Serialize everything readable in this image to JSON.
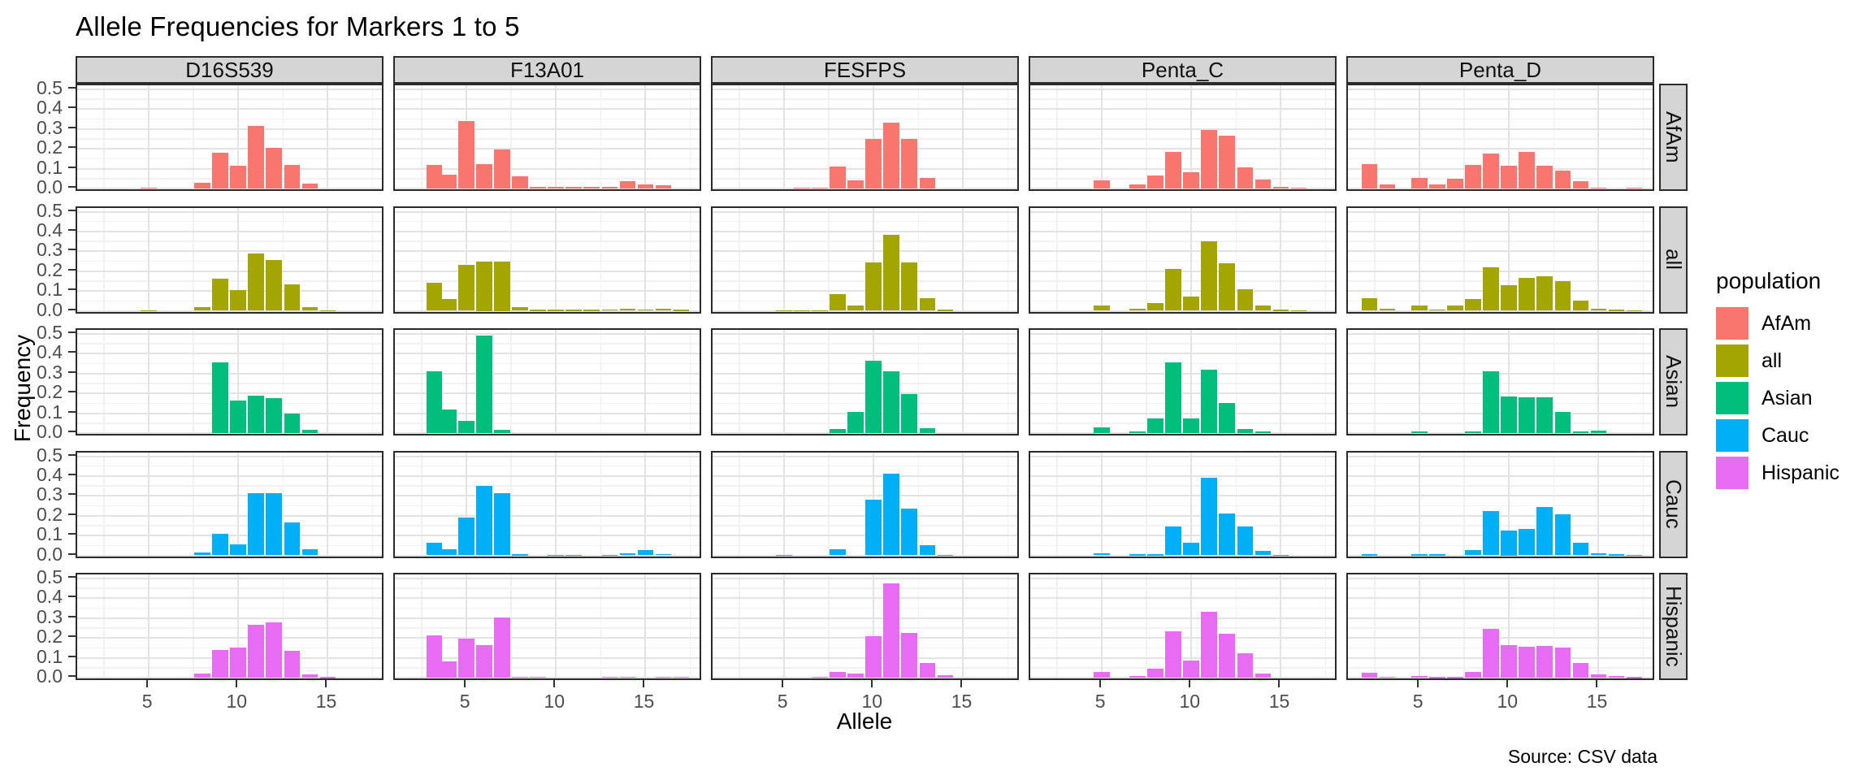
{
  "title": "Allele Frequencies for Markers 1 to 5",
  "caption": "Source: CSV data",
  "axes": {
    "x_label": "Allele",
    "y_label": "Frequency",
    "x_tick_labels": [
      "5",
      "10",
      "15"
    ],
    "y_tick_labels": [
      "0.0",
      "0.1",
      "0.2",
      "0.3",
      "0.4",
      "0.5"
    ]
  },
  "legend": {
    "title": "population",
    "entries": [
      {
        "label": "AfAm",
        "color": "#F8766D"
      },
      {
        "label": "all",
        "color": "#A3A500"
      },
      {
        "label": "Asian",
        "color": "#00BF7D"
      },
      {
        "label": "Cauc",
        "color": "#00B0F6"
      },
      {
        "label": "Hispanic",
        "color": "#E76BF3"
      }
    ]
  },
  "colors": {
    "strip_bg": "#D5D5D5",
    "panel_border": "#2B2B2B",
    "grid_major": "#E3E3E3",
    "grid_minor": "#F1F1F1"
  },
  "chart_data": {
    "type": "bar",
    "title": "Allele Frequencies for Markers 1 to 5",
    "xlabel": "Allele",
    "ylabel": "Frequency",
    "faceting": {
      "columns_variable": "marker",
      "rows_variable": "population",
      "columns": [
        "D16S539",
        "F13A01",
        "FESFPS",
        "Penta_C",
        "Penta_D"
      ],
      "rows": [
        "AfAm",
        "all",
        "Asian",
        "Cauc",
        "Hispanic"
      ]
    },
    "xlim": [
      1.0,
      18.2
    ],
    "ylim": [
      0,
      0.5
    ],
    "x_ticks": [
      5,
      10,
      15
    ],
    "y_ticks": [
      0,
      0.1,
      0.2,
      0.3,
      0.4,
      0.5
    ],
    "x_minor_ticks": [
      2.5,
      7.5,
      12.5,
      17.5
    ],
    "y_minor_ticks": [
      0.05,
      0.15,
      0.25,
      0.35,
      0.45
    ],
    "grid": "major+minor",
    "legend_position": "right",
    "bar_width": 0.9,
    "series_colors": {
      "AfAm": "#F8766D",
      "all": "#A3A500",
      "Asian": "#00BF7D",
      "Cauc": "#00B0F6",
      "Hispanic": "#E76BF3"
    },
    "panels": [
      {
        "marker": "D16S539",
        "population": "AfAm",
        "bars": [
          [
            5,
            0.005
          ],
          [
            8,
            0.03
          ],
          [
            9,
            0.18
          ],
          [
            10,
            0.115
          ],
          [
            11,
            0.315
          ],
          [
            12,
            0.205
          ],
          [
            13,
            0.12
          ],
          [
            14,
            0.025
          ]
        ]
      },
      {
        "marker": "F13A01",
        "population": "AfAm",
        "bars": [
          [
            3.2,
            0.12
          ],
          [
            4,
            0.07
          ],
          [
            5,
            0.34
          ],
          [
            6,
            0.125
          ],
          [
            7,
            0.195
          ],
          [
            8,
            0.06
          ],
          [
            9,
            0.01
          ],
          [
            10,
            0.008
          ],
          [
            11,
            0.008
          ],
          [
            12,
            0.008
          ],
          [
            13,
            0.008
          ],
          [
            14,
            0.035
          ],
          [
            15,
            0.02
          ],
          [
            16,
            0.015
          ]
        ]
      },
      {
        "marker": "FESFPS",
        "population": "AfAm",
        "bars": [
          [
            6,
            0.005
          ],
          [
            7,
            0.005
          ],
          [
            8,
            0.11
          ],
          [
            9,
            0.04
          ],
          [
            10,
            0.25
          ],
          [
            11,
            0.33
          ],
          [
            12,
            0.25
          ],
          [
            13,
            0.055
          ]
        ]
      },
      {
        "marker": "Penta_C",
        "population": "AfAm",
        "bars": [
          [
            5,
            0.04
          ],
          [
            7,
            0.02
          ],
          [
            8,
            0.065
          ],
          [
            9,
            0.185
          ],
          [
            10,
            0.08
          ],
          [
            11,
            0.295
          ],
          [
            12,
            0.265
          ],
          [
            13,
            0.105
          ],
          [
            14,
            0.045
          ],
          [
            15,
            0.01
          ],
          [
            16,
            0.005
          ]
        ]
      },
      {
        "marker": "Penta_D",
        "population": "AfAm",
        "bars": [
          [
            2.2,
            0.125
          ],
          [
            3.2,
            0.02
          ],
          [
            5,
            0.055
          ],
          [
            6,
            0.02
          ],
          [
            7,
            0.05
          ],
          [
            8,
            0.12
          ],
          [
            9,
            0.175
          ],
          [
            10,
            0.115
          ],
          [
            11,
            0.185
          ],
          [
            12,
            0.115
          ],
          [
            13,
            0.09
          ],
          [
            14,
            0.035
          ],
          [
            15,
            0.006
          ],
          [
            17,
            0.005
          ]
        ]
      },
      {
        "marker": "D16S539",
        "population": "all",
        "bars": [
          [
            5,
            0.004
          ],
          [
            8,
            0.02
          ],
          [
            9,
            0.16
          ],
          [
            10,
            0.105
          ],
          [
            11,
            0.29
          ],
          [
            12,
            0.255
          ],
          [
            13,
            0.135
          ],
          [
            14,
            0.02
          ],
          [
            15,
            0.004
          ]
        ]
      },
      {
        "marker": "F13A01",
        "population": "all",
        "bars": [
          [
            3.2,
            0.14
          ],
          [
            4,
            0.06
          ],
          [
            5,
            0.23
          ],
          [
            6,
            0.25
          ],
          [
            7,
            0.25
          ],
          [
            8,
            0.02
          ],
          [
            9,
            0.005
          ],
          [
            10,
            0.005
          ],
          [
            11,
            0.005
          ],
          [
            12,
            0.005
          ],
          [
            13,
            0.007
          ],
          [
            14,
            0.01
          ],
          [
            15,
            0.008
          ],
          [
            16,
            0.012
          ],
          [
            17,
            0.005
          ]
        ]
      },
      {
        "marker": "FESFPS",
        "population": "all",
        "bars": [
          [
            5,
            0.003
          ],
          [
            6,
            0.003
          ],
          [
            7,
            0.004
          ],
          [
            8,
            0.085
          ],
          [
            9,
            0.025
          ],
          [
            10,
            0.245
          ],
          [
            11,
            0.385
          ],
          [
            12,
            0.245
          ],
          [
            13,
            0.065
          ],
          [
            14,
            0.005
          ]
        ]
      },
      {
        "marker": "Penta_C",
        "population": "all",
        "bars": [
          [
            5,
            0.025
          ],
          [
            7,
            0.01
          ],
          [
            8,
            0.04
          ],
          [
            9,
            0.21
          ],
          [
            10,
            0.07
          ],
          [
            11,
            0.35
          ],
          [
            12,
            0.24
          ],
          [
            13,
            0.11
          ],
          [
            14,
            0.025
          ],
          [
            15,
            0.005
          ],
          [
            16,
            0.004
          ]
        ]
      },
      {
        "marker": "Penta_D",
        "population": "all",
        "bars": [
          [
            2.2,
            0.065
          ],
          [
            3.2,
            0.01
          ],
          [
            5,
            0.025
          ],
          [
            6,
            0.008
          ],
          [
            7,
            0.025
          ],
          [
            8,
            0.06
          ],
          [
            9,
            0.22
          ],
          [
            10,
            0.13
          ],
          [
            11,
            0.165
          ],
          [
            12,
            0.175
          ],
          [
            13,
            0.15
          ],
          [
            14,
            0.05
          ],
          [
            15,
            0.012
          ],
          [
            16,
            0.005
          ],
          [
            17,
            0.004
          ]
        ]
      },
      {
        "marker": "D16S539",
        "population": "Asian",
        "bars": [
          [
            9,
            0.355
          ],
          [
            10,
            0.165
          ],
          [
            11,
            0.19
          ],
          [
            12,
            0.175
          ],
          [
            13,
            0.1
          ],
          [
            14,
            0.015
          ]
        ]
      },
      {
        "marker": "F13A01",
        "population": "Asian",
        "bars": [
          [
            3.2,
            0.31
          ],
          [
            4,
            0.12
          ],
          [
            5,
            0.06
          ],
          [
            6,
            0.49
          ],
          [
            7,
            0.015
          ]
        ]
      },
      {
        "marker": "FESFPS",
        "population": "Asian",
        "bars": [
          [
            8,
            0.02
          ],
          [
            9,
            0.105
          ],
          [
            10,
            0.365
          ],
          [
            11,
            0.31
          ],
          [
            12,
            0.195
          ],
          [
            13,
            0.025
          ]
        ]
      },
      {
        "marker": "Penta_C",
        "population": "Asian",
        "bars": [
          [
            5,
            0.03
          ],
          [
            7,
            0.01
          ],
          [
            8,
            0.075
          ],
          [
            9,
            0.355
          ],
          [
            10,
            0.075
          ],
          [
            11,
            0.32
          ],
          [
            12,
            0.15
          ],
          [
            13,
            0.02
          ],
          [
            14,
            0.01
          ]
        ]
      },
      {
        "marker": "Penta_D",
        "population": "Asian",
        "bars": [
          [
            5,
            0.01
          ],
          [
            8,
            0.008
          ],
          [
            9,
            0.31
          ],
          [
            10,
            0.185
          ],
          [
            11,
            0.18
          ],
          [
            12,
            0.18
          ],
          [
            13,
            0.105
          ],
          [
            14,
            0.01
          ],
          [
            15,
            0.012
          ]
        ]
      },
      {
        "marker": "D16S539",
        "population": "Cauc",
        "bars": [
          [
            8,
            0.015
          ],
          [
            9,
            0.11
          ],
          [
            10,
            0.055
          ],
          [
            11,
            0.315
          ],
          [
            12,
            0.315
          ],
          [
            13,
            0.165
          ],
          [
            14,
            0.03
          ]
        ]
      },
      {
        "marker": "F13A01",
        "population": "Cauc",
        "bars": [
          [
            3.2,
            0.065
          ],
          [
            4,
            0.03
          ],
          [
            5,
            0.19
          ],
          [
            6,
            0.35
          ],
          [
            7,
            0.315
          ],
          [
            8,
            0.005
          ],
          [
            10,
            0.004
          ],
          [
            11,
            0.004
          ],
          [
            13,
            0.004
          ],
          [
            14,
            0.012
          ],
          [
            15,
            0.025
          ],
          [
            16,
            0.008
          ]
        ]
      },
      {
        "marker": "FESFPS",
        "population": "Cauc",
        "bars": [
          [
            5,
            0.003
          ],
          [
            8,
            0.03
          ],
          [
            10,
            0.28
          ],
          [
            11,
            0.41
          ],
          [
            12,
            0.235
          ],
          [
            13,
            0.05
          ],
          [
            14,
            0.004
          ]
        ]
      },
      {
        "marker": "Penta_C",
        "population": "Cauc",
        "bars": [
          [
            5,
            0.01
          ],
          [
            7,
            0.005
          ],
          [
            8,
            0.005
          ],
          [
            9,
            0.145
          ],
          [
            10,
            0.065
          ],
          [
            11,
            0.39
          ],
          [
            12,
            0.21
          ],
          [
            13,
            0.145
          ],
          [
            14,
            0.022
          ],
          [
            15,
            0.004
          ]
        ]
      },
      {
        "marker": "Penta_D",
        "population": "Cauc",
        "bars": [
          [
            2.2,
            0.006
          ],
          [
            5,
            0.005
          ],
          [
            6,
            0.005
          ],
          [
            8,
            0.025
          ],
          [
            9,
            0.225
          ],
          [
            10,
            0.125
          ],
          [
            11,
            0.135
          ],
          [
            12,
            0.245
          ],
          [
            13,
            0.205
          ],
          [
            14,
            0.065
          ],
          [
            15,
            0.012
          ],
          [
            16,
            0.005
          ],
          [
            17,
            0.004
          ]
        ]
      },
      {
        "marker": "D16S539",
        "population": "Hispanic",
        "bars": [
          [
            8,
            0.02
          ],
          [
            9,
            0.14
          ],
          [
            10,
            0.15
          ],
          [
            11,
            0.265
          ],
          [
            12,
            0.28
          ],
          [
            13,
            0.135
          ],
          [
            14,
            0.015
          ],
          [
            15,
            0.004
          ]
        ]
      },
      {
        "marker": "F13A01",
        "population": "Hispanic",
        "bars": [
          [
            3.2,
            0.215
          ],
          [
            4,
            0.08
          ],
          [
            5,
            0.195
          ],
          [
            6,
            0.165
          ],
          [
            7,
            0.305
          ],
          [
            8,
            0.006
          ],
          [
            9,
            0.006
          ],
          [
            13,
            0.006
          ],
          [
            14,
            0.006
          ],
          [
            16,
            0.006
          ],
          [
            17,
            0.005
          ]
        ]
      },
      {
        "marker": "FESFPS",
        "population": "Hispanic",
        "bars": [
          [
            7,
            0.005
          ],
          [
            8,
            0.03
          ],
          [
            9,
            0.02
          ],
          [
            10,
            0.21
          ],
          [
            11,
            0.475
          ],
          [
            12,
            0.225
          ],
          [
            13,
            0.075
          ],
          [
            14,
            0.012
          ]
        ]
      },
      {
        "marker": "Penta_C",
        "population": "Hispanic",
        "bars": [
          [
            5,
            0.03
          ],
          [
            7,
            0.008
          ],
          [
            8,
            0.045
          ],
          [
            9,
            0.235
          ],
          [
            10,
            0.085
          ],
          [
            11,
            0.33
          ],
          [
            12,
            0.22
          ],
          [
            13,
            0.125
          ],
          [
            14,
            0.02
          ]
        ]
      },
      {
        "marker": "Penta_D",
        "population": "Hispanic",
        "bars": [
          [
            2.2,
            0.025
          ],
          [
            3.2,
            0.005
          ],
          [
            5,
            0.008
          ],
          [
            6,
            0.004
          ],
          [
            7,
            0.004
          ],
          [
            8,
            0.03
          ],
          [
            9,
            0.245
          ],
          [
            10,
            0.165
          ],
          [
            11,
            0.155
          ],
          [
            12,
            0.16
          ],
          [
            13,
            0.15
          ],
          [
            14,
            0.075
          ],
          [
            15,
            0.018
          ],
          [
            16,
            0.008
          ],
          [
            17,
            0.004
          ]
        ]
      }
    ]
  }
}
